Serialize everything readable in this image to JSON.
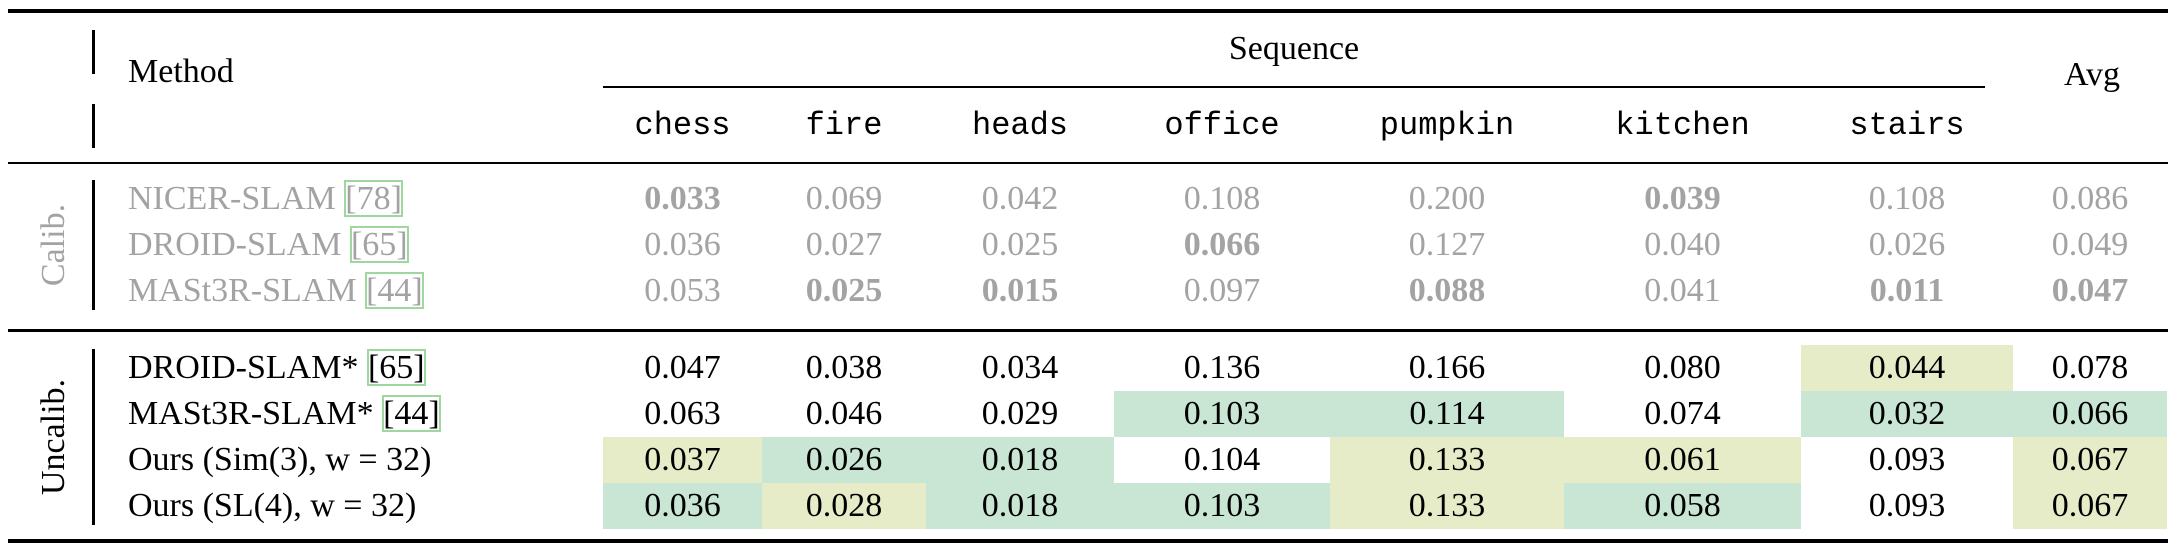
{
  "header": {
    "method": "Method",
    "sequence": "Sequence",
    "avg": "Avg",
    "columns": [
      "chess",
      "fire",
      "heads",
      "office",
      "pumpkin",
      "kitchen",
      "stairs"
    ]
  },
  "groups": [
    {
      "label": "Calib.",
      "muted": true,
      "rows": [
        {
          "method": "NICER-SLAM",
          "cite": "[78]",
          "cells": [
            {
              "text": "0.033",
              "bold": true
            },
            {
              "text": "0.069"
            },
            {
              "text": "0.042"
            },
            {
              "text": "0.108"
            },
            {
              "text": "0.200"
            },
            {
              "text": "0.039",
              "bold": true
            },
            {
              "text": "0.108"
            },
            {
              "text": "0.086"
            }
          ]
        },
        {
          "method": "DROID-SLAM",
          "cite": "[65]",
          "cells": [
            {
              "text": "0.036"
            },
            {
              "text": "0.027"
            },
            {
              "text": "0.025"
            },
            {
              "text": "0.066",
              "bold": true
            },
            {
              "text": "0.127"
            },
            {
              "text": "0.040"
            },
            {
              "text": "0.026"
            },
            {
              "text": "0.049"
            }
          ]
        },
        {
          "method": "MASt3R-SLAM",
          "cite": "[44]",
          "cells": [
            {
              "text": "0.053"
            },
            {
              "text": "0.025",
              "bold": true
            },
            {
              "text": "0.015",
              "bold": true
            },
            {
              "text": "0.097"
            },
            {
              "text": "0.088",
              "bold": true
            },
            {
              "text": "0.041"
            },
            {
              "text": "0.011",
              "bold": true
            },
            {
              "text": "0.047",
              "bold": true
            }
          ]
        }
      ]
    },
    {
      "label": "Uncalib.",
      "muted": false,
      "rows": [
        {
          "method": "DROID-SLAM*",
          "cite": "[65]",
          "cells": [
            {
              "text": "0.047"
            },
            {
              "text": "0.038"
            },
            {
              "text": "0.034"
            },
            {
              "text": "0.136"
            },
            {
              "text": "0.166"
            },
            {
              "text": "0.080"
            },
            {
              "text": "0.044",
              "fill": "#e6ebc8"
            },
            {
              "text": "0.078"
            }
          ]
        },
        {
          "method": "MASt3R-SLAM*",
          "cite": "[44]",
          "cells": [
            {
              "text": "0.063"
            },
            {
              "text": "0.046"
            },
            {
              "text": "0.029"
            },
            {
              "text": "0.103",
              "fill": "#c9e5d3"
            },
            {
              "text": "0.114",
              "fill": "#c9e5d3"
            },
            {
              "text": "0.074"
            },
            {
              "text": "0.032",
              "fill": "#c9e5d3"
            },
            {
              "text": "0.066",
              "fill": "#c9e5d3"
            }
          ]
        },
        {
          "method": "Ours (Sim(3), w = 32)",
          "cells": [
            {
              "text": "0.037",
              "fill": "#e6ebc8"
            },
            {
              "text": "0.026",
              "fill": "#c9e5d3"
            },
            {
              "text": "0.018",
              "fill": "#c9e5d3"
            },
            {
              "text": "0.104"
            },
            {
              "text": "0.133",
              "fill": "#e6ebc8"
            },
            {
              "text": "0.061",
              "fill": "#e6ebc8"
            },
            {
              "text": "0.093"
            },
            {
              "text": "0.067",
              "fill": "#e6ebc8"
            }
          ]
        },
        {
          "method": "Ours (SL(4), w = 32)",
          "cells": [
            {
              "text": "0.036",
              "fill": "#c9e5d3"
            },
            {
              "text": "0.028",
              "fill": "#e6ebc8"
            },
            {
              "text": "0.018",
              "fill": "#c9e5d3"
            },
            {
              "text": "0.103",
              "fill": "#c9e5d3"
            },
            {
              "text": "0.133",
              "fill": "#e6ebc8"
            },
            {
              "text": "0.058",
              "fill": "#c9e5d3"
            },
            {
              "text": "0.093"
            },
            {
              "text": "0.067",
              "fill": "#e6ebc8"
            }
          ]
        }
      ]
    }
  ]
}
